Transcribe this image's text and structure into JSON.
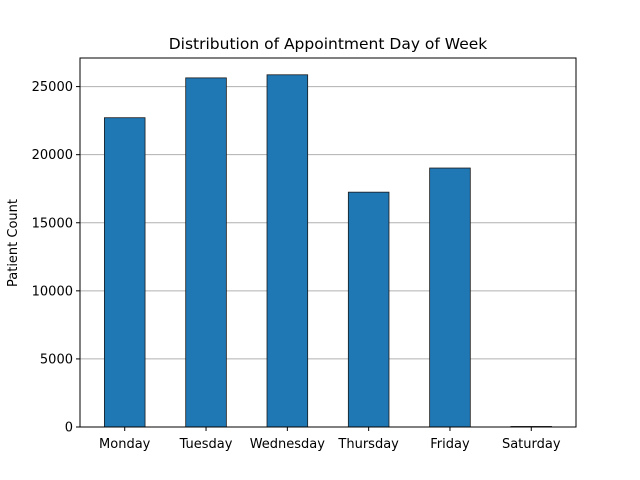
{
  "chart_data": {
    "type": "bar",
    "title": "Distribution of Appointment Day of Week",
    "xlabel": "",
    "ylabel": "Patient Count",
    "categories": [
      "Monday",
      "Tuesday",
      "Wednesday",
      "Thursday",
      "Friday",
      "Saturday"
    ],
    "values": [
      22715,
      25640,
      25867,
      17247,
      19019,
      39
    ],
    "ylim": [
      0,
      27100
    ],
    "yticks": [
      0,
      5000,
      10000,
      15000,
      20000,
      25000
    ],
    "grid": "y-major",
    "colors": {
      "bar": "#1f77b4",
      "bar_edge": "#1a1a1a",
      "grid": "#b0b0b0"
    }
  }
}
